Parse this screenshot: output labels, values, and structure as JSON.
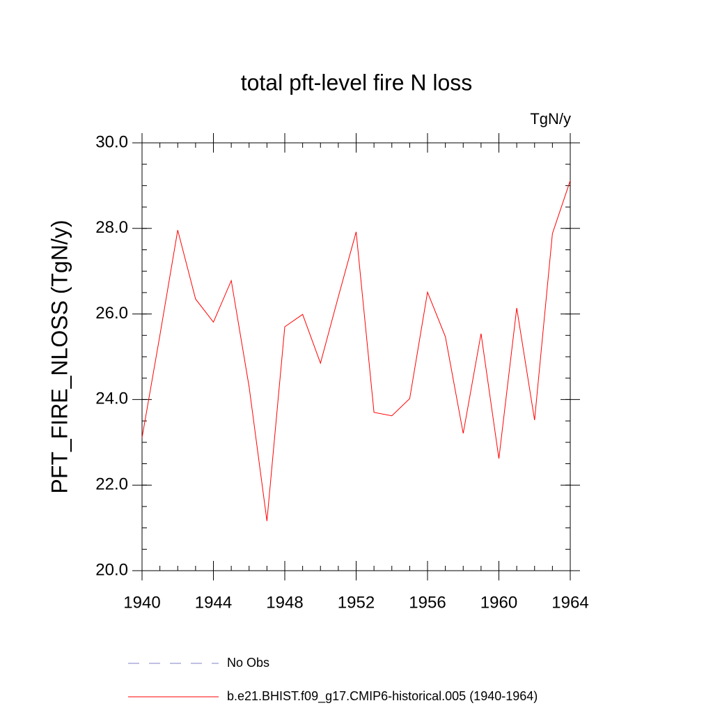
{
  "chart_data": {
    "type": "line",
    "title": "total pft-level fire N loss",
    "units": "TgN/y",
    "y_label": "PFT_FIRE_NLOSS  (TgN/y)",
    "x": [
      1940,
      1941,
      1942,
      1943,
      1944,
      1945,
      1946,
      1947,
      1948,
      1949,
      1950,
      1951,
      1952,
      1953,
      1954,
      1955,
      1956,
      1957,
      1958,
      1959,
      1960,
      1961,
      1962,
      1963,
      1964
    ],
    "series": [
      {
        "name": "b.e21.BHIST.f09_g17.CMIP6-historical.005 (1940-1964)",
        "color": "#ff0000",
        "values": [
          23.11,
          25.5,
          27.96,
          26.35,
          25.81,
          26.78,
          24.3,
          21.16,
          25.7,
          25.99,
          24.85,
          26.4,
          27.92,
          23.7,
          23.62,
          24.02,
          26.51,
          25.47,
          23.21,
          25.54,
          22.62,
          26.14,
          23.52,
          27.88,
          29.12
        ]
      }
    ],
    "extra_legend": [
      {
        "name": "No Obs",
        "color": "#8080c8",
        "dashed": true
      }
    ],
    "xlim": [
      1940,
      1964
    ],
    "xticks": [
      1940,
      1944,
      1948,
      1952,
      1956,
      1960,
      1964
    ],
    "ylim": [
      20,
      30
    ],
    "yticks": [
      {
        "value": 20,
        "label": "20.0"
      },
      {
        "value": 22,
        "label": "22.0"
      },
      {
        "value": 24,
        "label": "24.0"
      },
      {
        "value": 26,
        "label": "26.0"
      },
      {
        "value": 28,
        "label": "28.0"
      },
      {
        "value": 30,
        "label": "30.0"
      }
    ]
  }
}
